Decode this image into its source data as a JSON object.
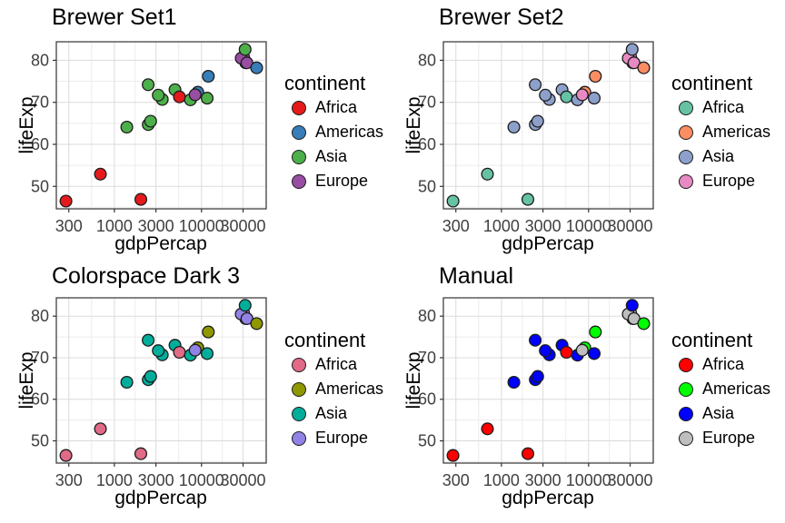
{
  "chart_data": {
    "type": "scatter",
    "xlabel": "gdpPercap",
    "ylabel": "lifeExp",
    "legend_title": "continent",
    "legend_entries": [
      "Africa",
      "Americas",
      "Asia",
      "Europe"
    ],
    "x_scale": "log10",
    "x_ticks": [
      300,
      1000,
      3000,
      10000,
      30000
    ],
    "x_tick_labels": [
      "300",
      "1000",
      "3000",
      "10000",
      "30000"
    ],
    "x_minor_ticks": [
      548,
      1732,
      5477,
      17321,
      54772
    ],
    "y_ticks": [
      50,
      60,
      70,
      80
    ],
    "y_tick_labels": [
      "50",
      "60",
      "70",
      "80"
    ],
    "y_minor_ticks": [
      45,
      55,
      65,
      75
    ],
    "x_domain_log10": [
      2.33388,
      4.74246
    ],
    "y_domain": [
      44.655,
      84.41
    ],
    "grid": {
      "major_color": "#dbdbdb",
      "minor_color": "#ececec",
      "border_color": "#333333",
      "tick_color": "#333333",
      "tick_label_color": "#404040"
    },
    "point_style": {
      "radius": 6.4,
      "stroke": "#1c1c1c",
      "stroke_width": 1.3
    },
    "panels": [
      {
        "id": "brewer-set1",
        "title": "Brewer Set1",
        "palette": {
          "Africa": "#E41A1C",
          "Americas": "#377EB8",
          "Asia": "#4DAF4A",
          "Europe": "#984EA3"
        }
      },
      {
        "id": "brewer-set2",
        "title": "Brewer Set2",
        "palette": {
          "Africa": "#66C2A5",
          "Americas": "#FC8D62",
          "Asia": "#8DA0CB",
          "Europe": "#E78AC3"
        }
      },
      {
        "id": "colorspace-dark3",
        "title": "Colorspace Dark 3",
        "palette": {
          "Africa": "#E16A86",
          "Americas": "#909800",
          "Asia": "#00AD9A",
          "Europe": "#9183E6"
        }
      },
      {
        "id": "manual",
        "title": "Manual",
        "palette": {
          "Africa": "#FF0000",
          "Americas": "#00FF00",
          "Asia": "#0000FF",
          "Europe": "#BEBEBE"
        }
      }
    ],
    "points": [
      {
        "continent": "Asia",
        "gdpPercap": 1391,
        "lifeExp": 64.1
      },
      {
        "continent": "Americas",
        "gdpPercap": 9066,
        "lifeExp": 72.4
      },
      {
        "continent": "Asia",
        "gdpPercap": 4959,
        "lifeExp": 73.0
      },
      {
        "continent": "Africa",
        "gdpPercap": 278,
        "lifeExp": 46.5
      },
      {
        "continent": "Africa",
        "gdpPercap": 5581,
        "lifeExp": 71.3
      },
      {
        "continent": "Africa",
        "gdpPercap": 691,
        "lifeExp": 52.9
      },
      {
        "continent": "Europe",
        "gdpPercap": 30470,
        "lifeExp": 80.7
      },
      {
        "continent": "Europe",
        "gdpPercap": 32170,
        "lifeExp": 79.4
      },
      {
        "continent": "Asia",
        "gdpPercap": 2452,
        "lifeExp": 64.7
      },
      {
        "continent": "Asia",
        "gdpPercap": 3541,
        "lifeExp": 70.7
      },
      {
        "continent": "Asia",
        "gdpPercap": 11606,
        "lifeExp": 71.0
      },
      {
        "continent": "Europe",
        "gdpPercap": 28570,
        "lifeExp": 80.5
      },
      {
        "continent": "Asia",
        "gdpPercap": 31656,
        "lifeExp": 82.6
      },
      {
        "continent": "Americas",
        "gdpPercap": 11978,
        "lifeExp": 76.2
      },
      {
        "continent": "Africa",
        "gdpPercap": 2014,
        "lifeExp": 46.9
      },
      {
        "continent": "Asia",
        "gdpPercap": 2606,
        "lifeExp": 65.5
      },
      {
        "continent": "Asia",
        "gdpPercap": 3190,
        "lifeExp": 71.7
      },
      {
        "continent": "Asia",
        "gdpPercap": 7458,
        "lifeExp": 70.6
      },
      {
        "continent": "Europe",
        "gdpPercap": 8458,
        "lifeExp": 71.8
      },
      {
        "continent": "Europe",
        "gdpPercap": 33203,
        "lifeExp": 79.4
      },
      {
        "continent": "Americas",
        "gdpPercap": 42952,
        "lifeExp": 78.2
      },
      {
        "continent": "Asia",
        "gdpPercap": 2442,
        "lifeExp": 74.2
      }
    ]
  }
}
